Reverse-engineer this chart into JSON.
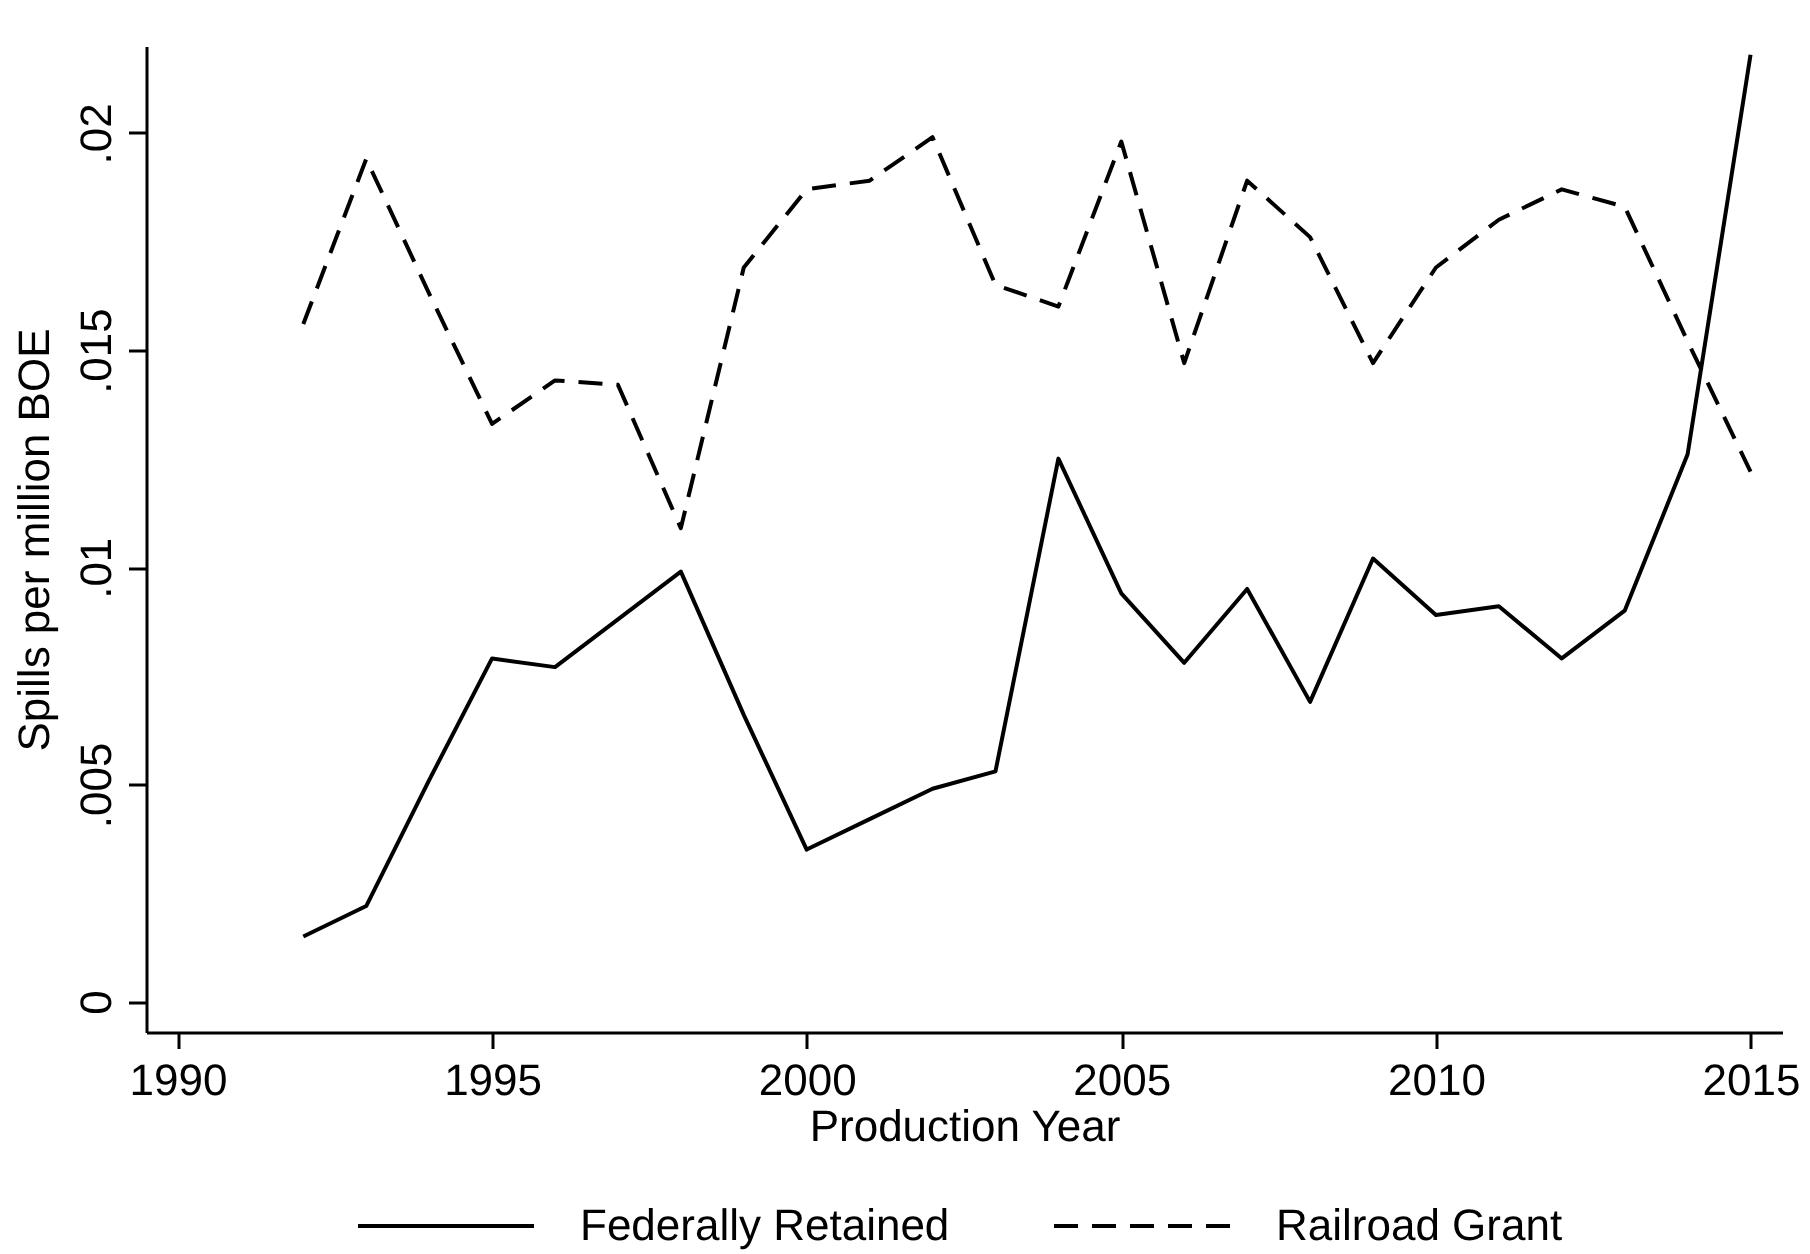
{
  "chart_data": {
    "type": "line",
    "xlabel": "Production Year",
    "ylabel": "Spills per million BOE",
    "x": [
      1992,
      1993,
      1994,
      1995,
      1996,
      1997,
      1998,
      1999,
      2000,
      2001,
      2002,
      2003,
      2004,
      2005,
      2006,
      2007,
      2008,
      2009,
      2010,
      2011,
      2012,
      2013,
      2014,
      2015
    ],
    "series": [
      {
        "name": "Federally Retained",
        "color": "#000000",
        "line_style": "solid",
        "values": [
          0.0015,
          0.0022,
          0.0051,
          0.0079,
          0.0077,
          0.0088,
          0.0099,
          0.0066,
          0.0035,
          0.0042,
          0.0049,
          0.0053,
          0.0125,
          0.0094,
          0.0078,
          0.0095,
          0.0069,
          0.0102,
          0.0089,
          0.0091,
          0.0079,
          0.009,
          0.0126,
          0.0218
        ]
      },
      {
        "name": "Railroad Grant",
        "color": "#000000",
        "line_style": "dashed",
        "values": [
          0.0156,
          0.0194,
          0.0163,
          0.0133,
          0.0143,
          0.0142,
          0.0109,
          0.0169,
          0.0187,
          0.0189,
          0.0199,
          0.0165,
          0.016,
          0.0198,
          0.0147,
          0.0189,
          0.0176,
          0.0147,
          0.0169,
          0.018,
          0.0187,
          0.0183,
          0.0152,
          0.0122
        ]
      }
    ],
    "xlim": [
      1989.5,
      2015.5
    ],
    "xticks": [
      1990,
      1995,
      2000,
      2005,
      2010,
      2015
    ],
    "ylim": [
      -0.0007,
      0.022
    ],
    "yticks": [
      0,
      {
        "value": 0.005,
        "label": ".005"
      },
      {
        "value": 0.01,
        "label": ".01"
      },
      {
        "value": 0.015,
        "label": ".015"
      },
      {
        "value": 0.02,
        "label": ".02"
      }
    ],
    "grid": false,
    "legend": "bottom"
  }
}
